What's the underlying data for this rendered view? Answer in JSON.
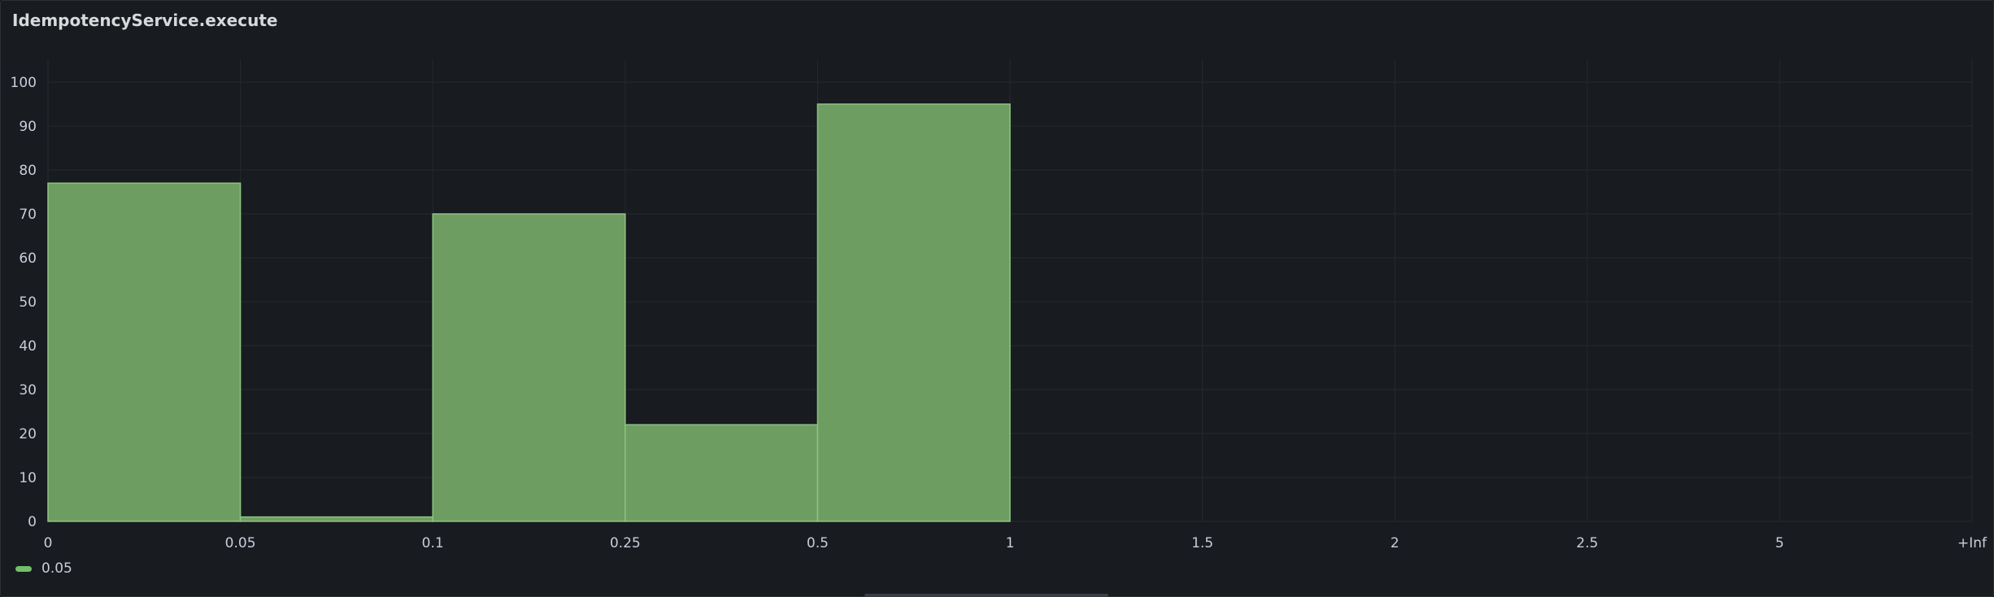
{
  "panel": {
    "title": "IdempotencyService.execute"
  },
  "legend": {
    "items": [
      {
        "name": "0.05",
        "color": "#73bf69"
      }
    ]
  },
  "colors": {
    "bar_fill": "#6e9d62",
    "bar_stroke": "#8dc383",
    "grid": "#26282d",
    "tick_text": "#ccccdc"
  },
  "chart_data": {
    "type": "bar",
    "title": "IdempotencyService.execute",
    "xlabel": "",
    "ylabel": "",
    "bucket_edges": [
      "0",
      "0.05",
      "0.1",
      "0.25",
      "0.5",
      "1",
      "1.5",
      "2",
      "2.5",
      "5",
      "+Inf"
    ],
    "categories": [
      "0–0.05",
      "0.05–0.1",
      "0.1–0.25",
      "0.25–0.5",
      "0.5–1",
      "1–1.5",
      "1.5–2",
      "2–2.5",
      "2.5–5",
      "5–+Inf"
    ],
    "values": [
      77,
      1,
      70,
      22,
      95,
      0,
      0,
      0,
      0,
      0
    ],
    "ylim": [
      0,
      100
    ],
    "yticks": [
      0,
      10,
      20,
      30,
      40,
      50,
      60,
      70,
      80,
      90,
      100
    ],
    "grid": true,
    "legend_position": "bottom-left"
  }
}
